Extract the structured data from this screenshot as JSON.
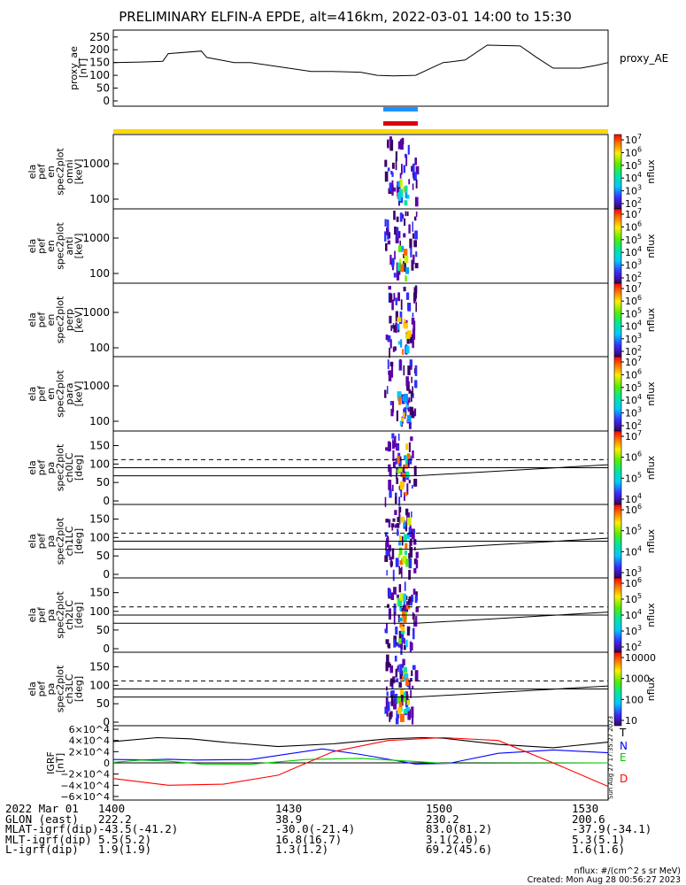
{
  "title": "PRELIMINARY ELFIN-A EPDE, alt=416km, 2022-03-01 14:00 to 15:30",
  "chart_data": [
    {
      "type": "line",
      "panel": "proxy_ae",
      "ylabel": [
        "proxy_ae",
        "[nT]"
      ],
      "legend": "proxy_AE",
      "yticks": [
        "250",
        "200",
        "150",
        "100",
        "50",
        "0"
      ],
      "ylim": [
        0,
        270
      ],
      "xlim": [
        "14:00",
        "15:30"
      ],
      "x": [
        "14:00",
        "14:05",
        "14:09",
        "14:10",
        "14:16",
        "14:17",
        "14:20",
        "14:22",
        "14:25",
        "14:36",
        "14:40",
        "14:45",
        "14:48",
        "14:51",
        "14:55",
        "14:58",
        "15:00",
        "15:01",
        "15:04",
        "15:08",
        "15:14",
        "15:17",
        "15:20",
        "15:25",
        "15:28",
        "15:30"
      ],
      "values": [
        150,
        152,
        155,
        185,
        195,
        170,
        158,
        150,
        150,
        115,
        115,
        112,
        100,
        98,
        100,
        130,
        150,
        152,
        160,
        218,
        215,
        170,
        128,
        128,
        140,
        150
      ]
    },
    {
      "type": "heatmap",
      "panel": "ela pef en spec2plot omni",
      "ylabel": [
        "ela",
        "pef",
        "en",
        "spec2plot",
        "omni",
        "[keV]"
      ],
      "yticks": [
        "1000",
        "100"
      ],
      "colorbar": {
        "label": "nflux",
        "ticks": [
          "10^7",
          "10^6",
          "10^5",
          "10^4",
          "10^3",
          "10^2"
        ]
      }
    },
    {
      "type": "heatmap",
      "panel": "ela pef en spec2plot anti",
      "ylabel": [
        "ela",
        "pef",
        "en",
        "spec2plot",
        "anti",
        "[keV]"
      ],
      "yticks": [
        "1000",
        "100"
      ],
      "colorbar": {
        "label": "nflux",
        "ticks": [
          "10^7",
          "10^6",
          "10^5",
          "10^4",
          "10^3",
          "10^2"
        ]
      }
    },
    {
      "type": "heatmap",
      "panel": "ela pef en spec2plot perp",
      "ylabel": [
        "ela",
        "pef",
        "en",
        "spec2plot",
        "perp",
        "[keV]"
      ],
      "yticks": [
        "1000",
        "100"
      ],
      "colorbar": {
        "label": "nflux",
        "ticks": [
          "10^7",
          "10^6",
          "10^5",
          "10^4",
          "10^3",
          "10^2"
        ]
      }
    },
    {
      "type": "heatmap",
      "panel": "ela pef en spec2plot para",
      "ylabel": [
        "ela",
        "pef",
        "en",
        "spec2plot",
        "para",
        "[keV]"
      ],
      "yticks": [
        "1000",
        "100"
      ],
      "colorbar": {
        "label": "nflux",
        "ticks": [
          "10^7",
          "10^6",
          "10^5",
          "10^4",
          "10^3",
          "10^2"
        ]
      }
    },
    {
      "type": "heatmap",
      "panel": "ela pef pa spec2plot ch0LC",
      "ylabel": [
        "ela",
        "pef",
        "pa",
        "spec2plot",
        "ch0LC",
        "[deg]"
      ],
      "yticks": [
        "150",
        "100",
        "50",
        "0"
      ],
      "colorbar": {
        "label": "nflux",
        "ticks": [
          "10^7",
          "10^6",
          "10^5",
          "10^4"
        ]
      }
    },
    {
      "type": "heatmap",
      "panel": "ela pef pa spec2plot ch1LC",
      "ylabel": [
        "ela",
        "pef",
        "pa",
        "spec2plot",
        "ch1LC",
        "[deg]"
      ],
      "yticks": [
        "150",
        "100",
        "50",
        "0"
      ],
      "colorbar": {
        "label": "nflux",
        "ticks": [
          "10^6",
          "10^5",
          "10^4",
          "10^3"
        ]
      }
    },
    {
      "type": "heatmap",
      "panel": "ela pef pa spec2plot ch2LC",
      "ylabel": [
        "ela",
        "pef",
        "pa",
        "spec2plot",
        "ch2LC",
        "[deg]"
      ],
      "yticks": [
        "150",
        "100",
        "50",
        "0"
      ],
      "colorbar": {
        "label": "nflux",
        "ticks": [
          "10^6",
          "10^5",
          "10^4",
          "10^3",
          "10^2"
        ]
      }
    },
    {
      "type": "heatmap",
      "panel": "ela pef pa spec2plot ch3LC",
      "ylabel": [
        "ela",
        "pef",
        "pa",
        "spec2plot",
        "ch3LC",
        "[deg]"
      ],
      "yticks": [
        "150",
        "100",
        "50",
        "0"
      ],
      "colorbar": {
        "label": "nflux",
        "ticks": [
          "10000",
          "1000",
          "100",
          "10"
        ]
      }
    },
    {
      "type": "line",
      "panel": "IGRF",
      "ylabel": [
        "IGRF",
        "[nT]"
      ],
      "yticks": [
        "6×10^4",
        "4×10^4",
        "2×10^4",
        "0",
        "−2×10^4",
        "−4×10^4",
        "−6×10^4"
      ],
      "ylim": [
        -60000,
        60000
      ],
      "legend": [
        "T",
        "N",
        "E",
        "D"
      ],
      "series": [
        {
          "name": "T",
          "color": "#000000",
          "x": [
            0,
            8,
            14,
            20,
            30,
            40,
            50,
            56,
            60,
            70,
            80,
            90
          ],
          "values": [
            38000,
            45000,
            43000,
            37000,
            29000,
            34000,
            43000,
            45000,
            44000,
            33000,
            27000,
            37000
          ]
        },
        {
          "name": "N",
          "color": "#0000ff",
          "x": [
            0,
            6,
            10,
            15,
            25,
            38,
            45,
            55,
            61,
            70,
            80,
            90
          ],
          "values": [
            6000,
            5500,
            6500,
            5000,
            6000,
            25000,
            15000,
            -2000,
            -1000,
            17000,
            23000,
            18000
          ]
        },
        {
          "name": "E",
          "color": "#00cc00",
          "x": [
            0,
            5,
            10,
            16,
            25,
            35,
            45,
            55,
            60,
            75,
            90
          ],
          "values": [
            1000,
            5000,
            3000,
            -2000,
            -2500,
            6000,
            8000,
            2500,
            -1000,
            -500,
            0
          ]
        },
        {
          "name": "D",
          "color": "#ff0000",
          "x": [
            0,
            10,
            20,
            30,
            40,
            50,
            60,
            70,
            80,
            90
          ],
          "values": [
            -28000,
            -40000,
            -38000,
            -22000,
            20000,
            40000,
            45000,
            40000,
            0,
            -42000
          ]
        }
      ]
    }
  ],
  "footer": {
    "rows": [
      [
        "2022 Mar 01",
        "1400",
        "1430",
        "1500",
        "1530"
      ],
      [
        "GLON (east)",
        "222.2",
        "38.9",
        "230.2",
        "200.6"
      ],
      [
        "MLAT-igrf(dip)",
        "-43.5(-41.2)",
        "-30.0(-21.4)",
        "83.0(81.2)",
        "-37.9(-34.1)"
      ],
      [
        "MLT-igrf(dip)",
        "5.5(5.2)",
        "16.8(16.7)",
        "3.1(2.0)",
        "5.3(5.1)"
      ],
      [
        "L-igrf(dip)",
        "1.9(1.9)",
        "1.3(1.2)",
        "69.2(45.6)",
        "1.6(1.6)"
      ]
    ],
    "units_note": "nflux: #/(cm^2 s sr MeV)",
    "created": "Created: Mon Aug 28 00:56:27 2023",
    "side_stamp": "Sun Aug 27 17:35:27 2023"
  },
  "colors": {
    "orbit_bar": "#ffd700",
    "science_zone_blue": "#1e90ff",
    "science_zone_red": "#dd0000"
  }
}
